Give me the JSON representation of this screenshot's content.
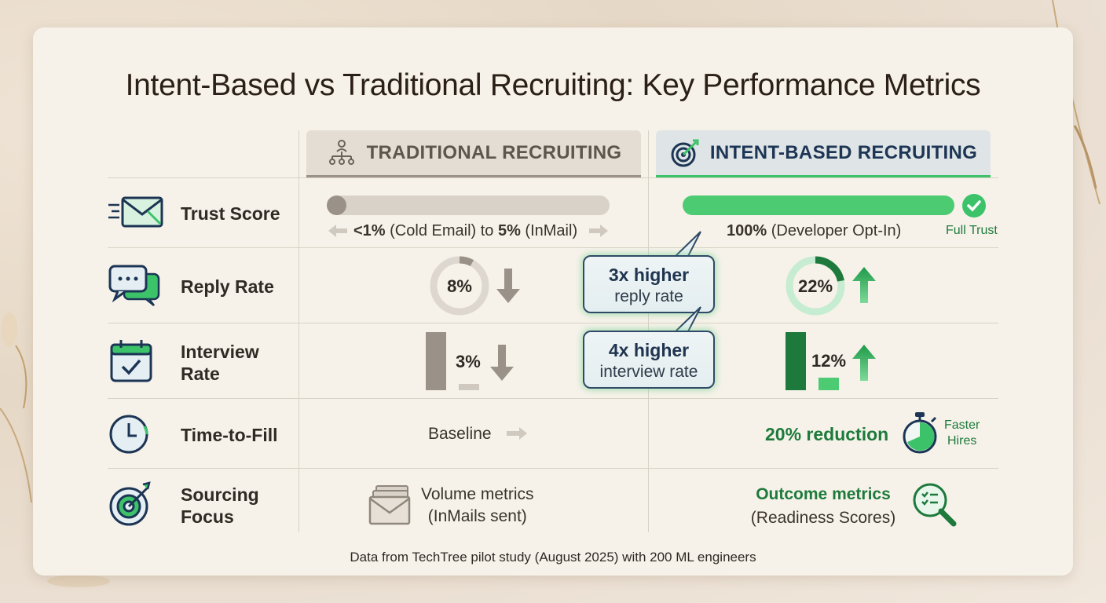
{
  "title": "Intent-Based vs Traditional Recruiting: Key Performance Metrics",
  "columns": {
    "traditional": "TRADITIONAL RECRUITING",
    "intent": "INTENT-BASED RECRUITING"
  },
  "rows": {
    "trust": {
      "label": "Trust Score",
      "trad_low": "<1%",
      "trad_low_text": " (Cold Email) to ",
      "trad_high": "5%",
      "trad_high_text": " (InMail)",
      "intent_value": "100%",
      "intent_text": " (Developer Opt-In)",
      "intent_badge": "Full Trust"
    },
    "reply": {
      "label": "Reply Rate"
    },
    "interview": {
      "label_1": "Interview",
      "label_2": "Rate"
    },
    "time": {
      "label": "Time-to-Fill",
      "trad": "Baseline",
      "intent": "20% reduction",
      "intent_badge_1": "Faster",
      "intent_badge_2": "Hires"
    },
    "sourcing": {
      "label_1": "Sourcing",
      "label_2": "Focus",
      "trad_1": "Volume metrics",
      "trad_2": "(InMails sent)",
      "intent_1": "Outcome metrics",
      "intent_2": "(Readiness Scores)"
    }
  },
  "callouts": {
    "reply": {
      "big": "3x higher",
      "small": "reply rate"
    },
    "interview": {
      "big": "4x higher",
      "small": "interview rate"
    }
  },
  "footer": "Data from TechTree pilot study (August 2025) with 200 ML engineers",
  "colors": {
    "accent_green": "#3cc36a",
    "dark_green": "#1e7a3c",
    "traditional_gray": "#9a9288",
    "navy": "#1c3554"
  },
  "chart_data": {
    "type": "table",
    "series": [
      {
        "name": "TRADITIONAL RECRUITING",
        "reply_rate": 8,
        "interview_rate": 3,
        "trust_score_max": 5
      },
      {
        "name": "INTENT-BASED RECRUITING",
        "reply_rate": 22,
        "interview_rate": 12,
        "trust_score": 100
      }
    ],
    "reply_rate": {
      "traditional": "8%",
      "intent": "22%"
    },
    "interview_rate": {
      "traditional": "3%",
      "intent": "12%"
    }
  }
}
